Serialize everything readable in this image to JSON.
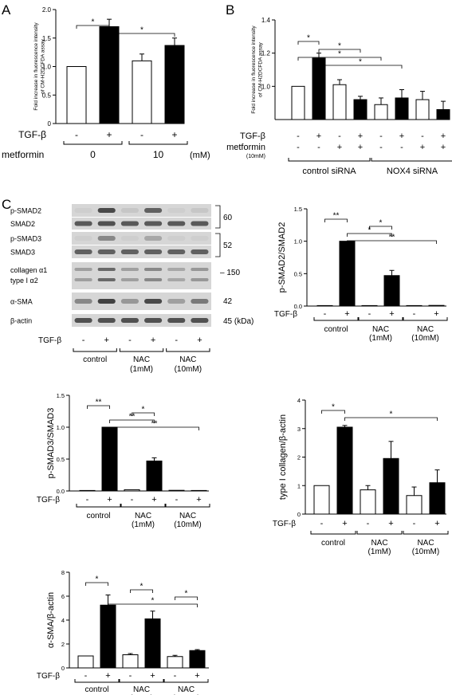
{
  "panel_labels": [
    "A",
    "B",
    "C"
  ],
  "colors": {
    "treated": "#000000",
    "untreated": "#ffffff",
    "blot_bg": "#d6d6d6",
    "band": "#3a3a3a"
  },
  "chart_data": [
    {
      "id": "A",
      "type": "bar",
      "ylabel": [
        "Fold increase in fluorescence intensity",
        "of CM-H2DCFDA assay"
      ],
      "ylim": [
        0,
        2.0
      ],
      "yticks": [
        "0",
        "0.5",
        "1.0",
        "1.5",
        "2.0"
      ],
      "values": [
        1.0,
        1.7,
        1.1,
        1.37
      ],
      "errors": [
        0,
        0.13,
        0.12,
        0.13
      ],
      "fills": [
        "white",
        "black",
        "white",
        "black"
      ],
      "rows": [
        {
          "label": "TGF-β",
          "cells": [
            "-",
            "+",
            "-",
            "+"
          ]
        }
      ],
      "groups": [
        {
          "label": "0",
          "start": 0,
          "end": 1
        },
        {
          "label": "10",
          "start": 2,
          "end": 3
        }
      ],
      "group_row_label": "metformin",
      "group_unit": "(mM)",
      "sig": [
        {
          "from": 0,
          "to": 1,
          "label": "*"
        },
        {
          "from": 1,
          "to": 3,
          "label": "*"
        }
      ]
    },
    {
      "id": "B",
      "type": "bar",
      "ylabel": [
        "Fold increase in fluorescence intensity",
        "of CM-H2DCFDA assay"
      ],
      "ylim": [
        0.8,
        1.4
      ],
      "yticks": [
        "1.0",
        "1.2",
        "1.4"
      ],
      "values": [
        1.0,
        1.17,
        1.01,
        0.92,
        0.89,
        0.93,
        0.92,
        0.86
      ],
      "errors": [
        0,
        0.03,
        0.03,
        0.02,
        0.04,
        0.05,
        0.05,
        0.05
      ],
      "fills": [
        "white",
        "black",
        "white",
        "black",
        "white",
        "black",
        "white",
        "black"
      ],
      "rows": [
        {
          "label": "TGF-β",
          "cells": [
            "-",
            "+",
            "-",
            "+",
            "-",
            "+",
            "-",
            "+"
          ]
        },
        {
          "label": "metformin",
          "sublabel": "(10mM)",
          "cells": [
            "-",
            "-",
            "+",
            "+",
            "-",
            "-",
            "+",
            "+"
          ]
        }
      ],
      "groups": [
        {
          "label": "control siRNA",
          "start": 0,
          "end": 3
        },
        {
          "label": "NOX4 siRNA",
          "start": 4,
          "end": 7
        }
      ],
      "sig": [
        {
          "from": 0,
          "to": 1,
          "label": "*"
        },
        {
          "from": 1,
          "to": 3,
          "label": "*"
        },
        {
          "from": 0,
          "to": 4,
          "label": "*"
        },
        {
          "from": 1,
          "to": 5,
          "label": "*"
        }
      ]
    },
    {
      "id": "C1",
      "type": "bar",
      "ylabel": [
        "p-SMAD2/SMAD2"
      ],
      "ylim": [
        0,
        1.5
      ],
      "yticks": [
        "0.0",
        "0.5",
        "1.0",
        "1.5"
      ],
      "values": [
        0.0,
        1.0,
        0.0,
        0.47,
        0.0,
        0.01
      ],
      "errors": [
        0,
        0,
        0,
        0.08,
        0,
        0
      ],
      "fills": [
        "white",
        "black",
        "white",
        "black",
        "white",
        "black"
      ],
      "rows": [
        {
          "label": "TGF-β",
          "cells": [
            "-",
            "+",
            "-",
            "+",
            "-",
            "+"
          ]
        }
      ],
      "groups": [
        {
          "label": "control",
          "start": 0,
          "end": 1
        },
        {
          "label": "NAC",
          "sublabel": "(1mM)",
          "start": 2,
          "end": 3
        },
        {
          "label": "NAC",
          "sublabel": "(10mM)",
          "start": 4,
          "end": 5
        }
      ],
      "sig": [
        {
          "from": 0,
          "to": 1,
          "label": "**"
        },
        {
          "from": 2,
          "to": 3,
          "label": "*"
        },
        {
          "from": 1,
          "to": 3,
          "label": "*"
        },
        {
          "from": 1,
          "to": 5,
          "label": "**"
        }
      ]
    },
    {
      "id": "C2",
      "type": "bar",
      "ylabel": [
        "p-SMAD3/SMAD3"
      ],
      "ylim": [
        0,
        1.5
      ],
      "yticks": [
        "0.0",
        "0.5",
        "1.0",
        "1.5"
      ],
      "values": [
        0.0,
        1.0,
        0.02,
        0.47,
        0.01,
        0.0
      ],
      "errors": [
        0,
        0,
        0,
        0.05,
        0,
        0
      ],
      "fills": [
        "white",
        "black",
        "white",
        "black",
        "white",
        "black"
      ],
      "rows": [
        {
          "label": "TGF-β",
          "cells": [
            "-",
            "+",
            "-",
            "+",
            "-",
            "+"
          ]
        }
      ],
      "groups": [
        {
          "label": "control",
          "start": 0,
          "end": 1
        },
        {
          "label": "NAC",
          "sublabel": "(1mM)",
          "start": 2,
          "end": 3
        },
        {
          "label": "NAC",
          "sublabel": "(10mM)",
          "start": 4,
          "end": 5
        }
      ],
      "sig": [
        {
          "from": 0,
          "to": 1,
          "label": "**"
        },
        {
          "from": 2,
          "to": 3,
          "label": "*"
        },
        {
          "from": 1,
          "to": 3,
          "label": "**"
        },
        {
          "from": 1,
          "to": 5,
          "label": "**"
        }
      ]
    },
    {
      "id": "C3",
      "type": "bar",
      "ylabel": [
        "type I collagen/β-actin"
      ],
      "ylim": [
        0,
        4
      ],
      "yticks": [
        "0",
        "1",
        "2",
        "3",
        "4"
      ],
      "values": [
        1.0,
        3.05,
        0.85,
        1.95,
        0.65,
        1.1
      ],
      "errors": [
        0,
        0.06,
        0.15,
        0.6,
        0.3,
        0.45
      ],
      "fills": [
        "white",
        "black",
        "white",
        "black",
        "white",
        "black"
      ],
      "rows": [
        {
          "label": "TGF-β",
          "cells": [
            "-",
            "+",
            "-",
            "+",
            "-",
            "+"
          ]
        }
      ],
      "groups": [
        {
          "label": "control",
          "start": 0,
          "end": 1
        },
        {
          "label": "NAC",
          "sublabel": "(1mM)",
          "start": 2,
          "end": 3
        },
        {
          "label": "NAC",
          "sublabel": "(10mM)",
          "start": 4,
          "end": 5
        }
      ],
      "sig": [
        {
          "from": 0,
          "to": 1,
          "label": "*"
        },
        {
          "from": 1,
          "to": 5,
          "label": "*"
        }
      ]
    },
    {
      "id": "C4",
      "type": "bar",
      "ylabel": [
        "α-SMA/β-actin"
      ],
      "ylim": [
        0,
        8
      ],
      "yticks": [
        "0",
        "2",
        "4",
        "6",
        "8"
      ],
      "values": [
        1.0,
        5.25,
        1.1,
        4.1,
        0.95,
        1.45
      ],
      "errors": [
        0,
        0.85,
        0.1,
        0.65,
        0.1,
        0.08
      ],
      "fills": [
        "white",
        "black",
        "white",
        "black",
        "white",
        "black"
      ],
      "rows": [
        {
          "label": "TGF-β",
          "cells": [
            "-",
            "+",
            "-",
            "+",
            "-",
            "+"
          ]
        }
      ],
      "groups": [
        {
          "label": "control",
          "start": 0,
          "end": 1
        },
        {
          "label": "NAC",
          "sublabel": "(1mM)",
          "start": 2,
          "end": 3
        },
        {
          "label": "NAC",
          "sublabel": "(10mM)",
          "start": 4,
          "end": 5
        }
      ],
      "sig": [
        {
          "from": 0,
          "to": 1,
          "label": "*"
        },
        {
          "from": 2,
          "to": 3,
          "label": "*"
        },
        {
          "from": 4,
          "to": 5,
          "label": "*"
        },
        {
          "from": 1,
          "to": 5,
          "label": "*"
        }
      ]
    }
  ],
  "blot": {
    "rows": [
      {
        "label": "p-SMAD2",
        "intensity": [
          0.05,
          0.9,
          0.1,
          0.75,
          0.05,
          0.1
        ]
      },
      {
        "label": "SMAD2",
        "intensity": [
          0.8,
          0.85,
          0.8,
          0.8,
          0.8,
          0.8
        ]
      },
      {
        "label": "p-SMAD3",
        "intensity": [
          0.05,
          0.5,
          0.05,
          0.3,
          0.05,
          0.05
        ]
      },
      {
        "label": "SMAD3",
        "intensity": [
          0.75,
          0.75,
          0.75,
          0.75,
          0.75,
          0.75
        ]
      },
      {
        "label": "collagen α1",
        "label2": "type I  α2",
        "intensity": [
          0.35,
          0.7,
          0.35,
          0.5,
          0.3,
          0.4
        ]
      },
      {
        "label": "α-SMA",
        "intensity": [
          0.5,
          0.95,
          0.4,
          0.9,
          0.35,
          0.6
        ]
      },
      {
        "label": "β-actin",
        "intensity": [
          0.85,
          0.85,
          0.85,
          0.85,
          0.85,
          0.85
        ]
      }
    ],
    "size_markers": [
      "60",
      "52",
      "– 150",
      "42",
      "45 (kDa)"
    ],
    "treatment_label": "TGF-β",
    "signs": [
      "-",
      "+",
      "-",
      "+",
      "-",
      "+"
    ],
    "groups": [
      {
        "label": "control"
      },
      {
        "label": "NAC",
        "sublabel": "(1mM)"
      },
      {
        "label": "NAC",
        "sublabel": "(10mM)"
      }
    ]
  }
}
